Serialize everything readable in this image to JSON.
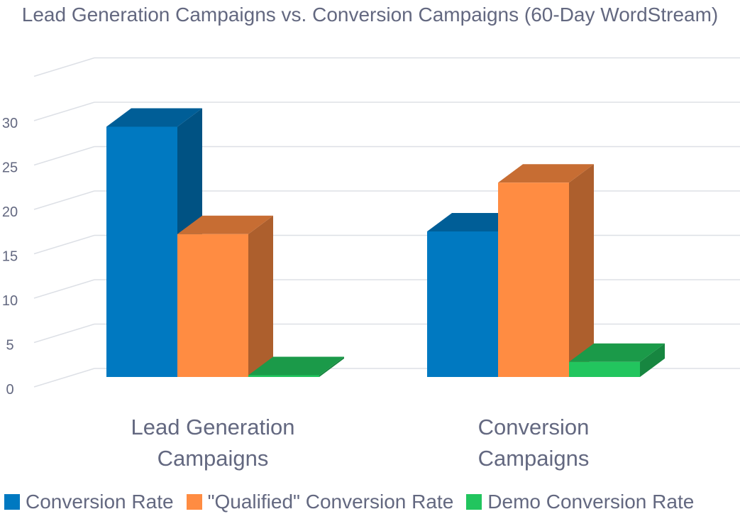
{
  "chart_data": {
    "type": "bar",
    "title": "Lead Generation Campaigns vs. Conversion Campaigns (60-Day WordStream)",
    "categories": [
      "Lead Generation Campaigns",
      "Conversion Campaigns"
    ],
    "series": [
      {
        "name": "Conversion Rate",
        "values": [
          28.2,
          16.4
        ],
        "color": "#0079C1"
      },
      {
        "name": "\"Qualified\" Conversion Rate",
        "values": [
          16.1,
          21.9
        ],
        "color": "#FF8C42"
      },
      {
        "name": "Demo Conversion Rate",
        "values": [
          0.2,
          1.7
        ],
        "color": "#22C55E"
      }
    ],
    "ylim": [
      0,
      30
    ],
    "yticks": [
      "0",
      "5",
      "10",
      "15",
      "20",
      "25",
      "30"
    ],
    "xlabel": "",
    "ylabel": "",
    "grid": true,
    "legend": "bottom",
    "style": "3d-column"
  }
}
